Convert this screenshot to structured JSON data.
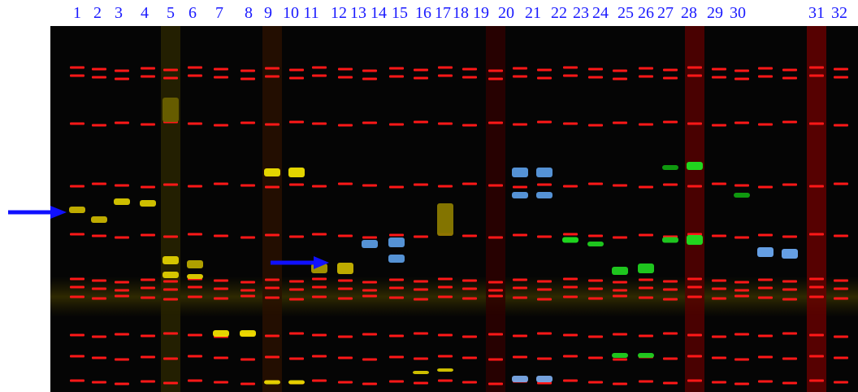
{
  "lane_labels": [
    "1",
    "2",
    "3",
    "4",
    "5",
    "6",
    "7",
    "8",
    "9",
    "10",
    "11",
    "12",
    "13",
    "14",
    "15",
    "16",
    "17",
    "18",
    "19",
    "20",
    "21",
    "22",
    "23",
    "24",
    "25",
    "26",
    "27",
    "28",
    "29",
    "30",
    "31",
    "32"
  ]
}
